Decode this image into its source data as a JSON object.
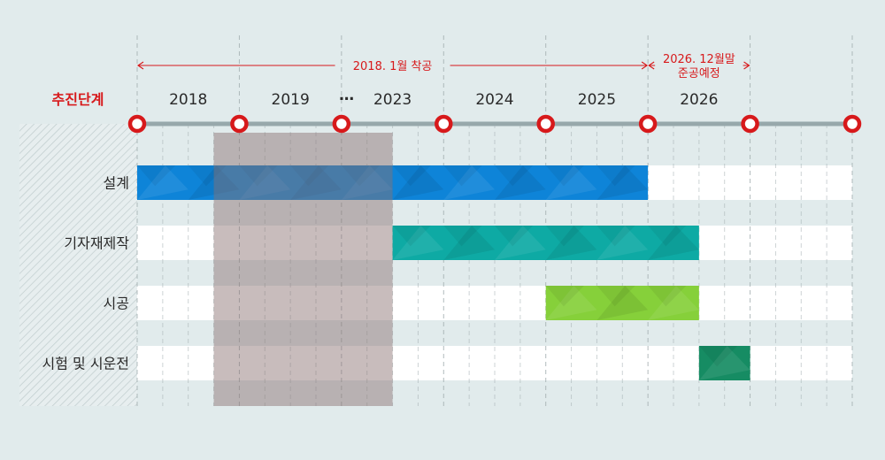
{
  "chart_data": {
    "type": "gantt",
    "phase_heading": "추진단계",
    "timeline_labels": [
      "2018",
      "2019",
      "…",
      "2023",
      "2024",
      "2025",
      "2026"
    ],
    "annotations": [
      {
        "text": "2018. 1월 착공",
        "lines": [
          "2018. 1월 착공"
        ],
        "from_milestone": 0,
        "to_milestone": 5
      },
      {
        "text": "2026. 12월말 준공예정",
        "lines": [
          "2026. 12월말",
          "준공예정"
        ],
        "from_milestone": 5,
        "to_milestone": 6
      }
    ],
    "skipped_period": {
      "from": 0.75,
      "to": 2.5,
      "note": "2019 ~ 2023 (compressed)"
    },
    "tasks": [
      {
        "name": "설계",
        "start": 0,
        "end": 5,
        "color": "#0e84d8"
      },
      {
        "name": "기자재제작",
        "start": 2.5,
        "end": 5.5,
        "color": "#0eaaa4"
      },
      {
        "name": "시공",
        "start": 4,
        "end": 5.5,
        "color": "#86d03a"
      },
      {
        "name": "시험 및 시운전",
        "start": 5.5,
        "end": 6,
        "color": "#168c63"
      }
    ],
    "colors": {
      "background": "#e1ebec",
      "timeline": "#97a8ab",
      "milestone": "#d7191b",
      "accent_text": "#d7191b",
      "overlay": "#8a7070"
    }
  }
}
